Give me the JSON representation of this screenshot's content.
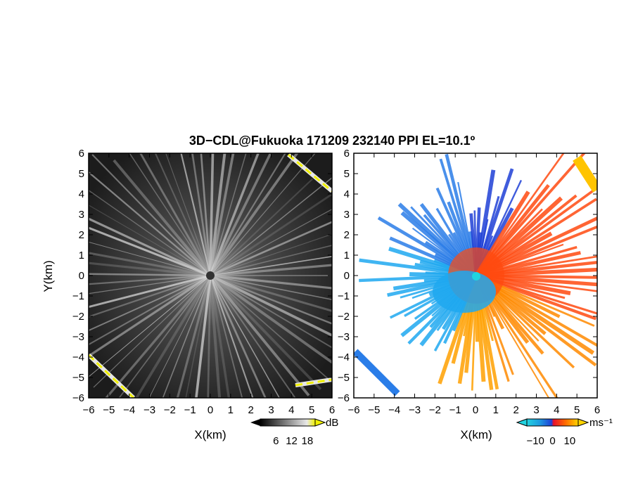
{
  "chart_data": [
    {
      "type": "heatmap",
      "panel": "reflectivity",
      "title": "3D−CDL@Fukuoka 171209 232140 PPI EL=10.1º",
      "xlabel": "X(km)",
      "ylabel": "Y(km)",
      "xlim": [
        -6,
        6
      ],
      "ylim": [
        -6,
        6
      ],
      "x_ticks": [
        "−6",
        "−5",
        "−4",
        "−3",
        "−2",
        "−1",
        "0",
        "1",
        "2",
        "3",
        "4",
        "5",
        "6"
      ],
      "y_ticks": [
        "6",
        "5",
        "4",
        "3",
        "2",
        "1",
        "0",
        "−1",
        "−2",
        "−3",
        "−4",
        "−5",
        "−6"
      ],
      "colorbar": {
        "unit": "dB",
        "ticks": [
          "6",
          "12",
          "18"
        ],
        "range": [
          0,
          21
        ],
        "colormap": "grayscale-to-yellow"
      },
      "colors": {
        "background": "#1a1a1a",
        "high": "#f0f000",
        "ray": "#bdbdbd"
      }
    },
    {
      "type": "heatmap",
      "panel": "doppler-velocity",
      "xlabel": "X(km)",
      "ylabel": "",
      "xlim": [
        -6,
        6
      ],
      "ylim": [
        -6,
        6
      ],
      "x_ticks": [
        "−6",
        "−5",
        "−4",
        "−3",
        "−2",
        "−1",
        "0",
        "1",
        "2",
        "3",
        "4",
        "5",
        "6"
      ],
      "y_ticks": [
        "6",
        "5",
        "4",
        "3",
        "2",
        "1",
        "0",
        "−1",
        "−2",
        "−3",
        "−4",
        "−5",
        "−6"
      ],
      "colorbar": {
        "unit": "ms⁻¹",
        "ticks": [
          "−10",
          "0",
          "10"
        ],
        "range": [
          -15,
          15
        ],
        "colormap": "cyan-blue-red-orange-yellow"
      },
      "colors": {
        "toward": "#1e6bd6",
        "away": "#ff5a00",
        "far_away": "#ffc400",
        "origin": "#22d3e0"
      }
    }
  ]
}
